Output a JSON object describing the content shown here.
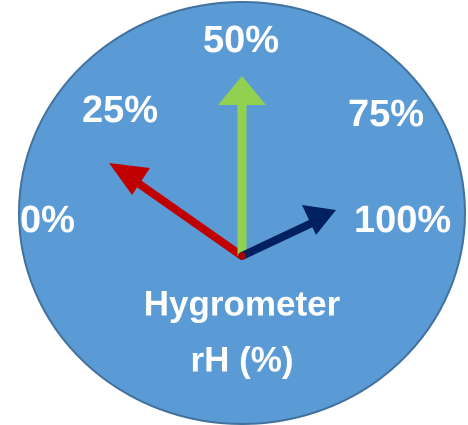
{
  "scale_labels": [
    "0%",
    "25%",
    "50%",
    "75%",
    "100%"
  ],
  "caption": [
    "Hygrometer",
    "rH (%)"
  ]
}
